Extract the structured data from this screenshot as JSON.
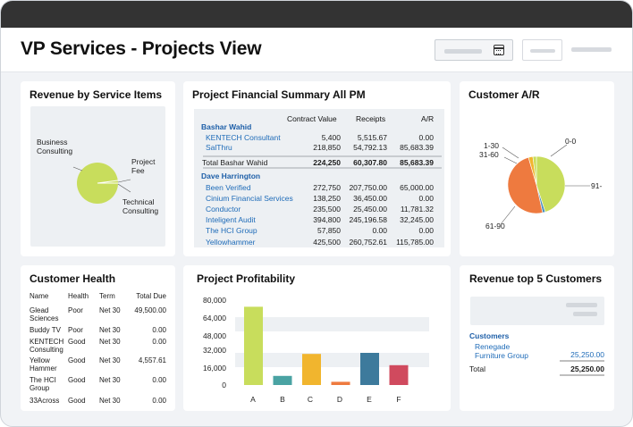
{
  "page": {
    "title": "VP Services - Projects View"
  },
  "revenue_service": {
    "title": "Revenue by  Service Items",
    "labels": [
      "Business\nConsulting",
      "Project\nFee",
      "Technical\nConsulting"
    ],
    "colors": {
      "main": "#c8dd5c",
      "accent": "#ffffff"
    }
  },
  "financial_summary": {
    "title": "Project Financial Summary All PM",
    "headers": {
      "contract": "Contract Value",
      "receipts": "Receipts",
      "ar": "A/R"
    },
    "pm1": {
      "name": "Bashar Wahid",
      "rows": [
        {
          "name": "KENTECH Consultant",
          "contract": "5,400",
          "receipts": "5,515.67",
          "ar": "0.00"
        },
        {
          "name": "SalThru",
          "contract": "218,850",
          "receipts": "54,792.13",
          "ar": "85,683.39"
        }
      ],
      "total": {
        "label": "Total Bashar Wahid",
        "contract": "224,250",
        "receipts": "60,307.80",
        "ar": "85,683.39"
      }
    },
    "pm2": {
      "name": "Dave Harrington",
      "rows": [
        {
          "name": "Been Verified",
          "contract": "272,750",
          "receipts": "207,750.00",
          "ar": "65,000.00"
        },
        {
          "name": "Cinium Financial Services",
          "contract": "138,250",
          "receipts": "36,450.00",
          "ar": "0.00"
        },
        {
          "name": "Conductor",
          "contract": "235,500",
          "receipts": "25,450.00",
          "ar": "11,781.32"
        },
        {
          "name": "Inteligent Audit",
          "contract": "394,800",
          "receipts": "245,196.58",
          "ar": "32,245.00"
        },
        {
          "name": "The HCI Group",
          "contract": "57,850",
          "receipts": "0.00",
          "ar": "0.00"
        },
        {
          "name": "Yellowhammer",
          "contract": "425,500",
          "receipts": "260,752.61",
          "ar": "115,785.00"
        }
      ]
    }
  },
  "customer_ar": {
    "title": "Customer A/R",
    "buckets": [
      {
        "label": "0-0",
        "value": 45,
        "color": "#c8dd5c"
      },
      {
        "label": "91-",
        "value": 1.5,
        "color": "#4a8fc0"
      },
      {
        "label": "61-90",
        "value": 49,
        "color": "#ee7a3f"
      },
      {
        "label": "31-60",
        "value": 2.5,
        "color": "#f1b52e"
      },
      {
        "label": "1-30",
        "value": 2,
        "color": "#c8dd5c"
      }
    ]
  },
  "customer_health": {
    "title": "Customer Health",
    "headers": {
      "name": "Name",
      "health": "Health",
      "term": "Term",
      "due": "Total Due"
    },
    "rows": [
      {
        "name": "Glead\nSciences",
        "health": "Poor",
        "term": "Net 30",
        "due": "49,500.00"
      },
      {
        "name": "Buddy TV",
        "health": "Poor",
        "term": "Net 30",
        "due": "0.00"
      },
      {
        "name": "KENTECH\nConsulting",
        "health": "Good",
        "term": "Net 30",
        "due": "0.00"
      },
      {
        "name": "Yellow\nHammer",
        "health": "Good",
        "term": "Net 30",
        "due": "4,557.61"
      },
      {
        "name": "The HCI\nGroup",
        "health": "Good",
        "term": "Net 30",
        "due": "0.00"
      },
      {
        "name": "33Across",
        "health": "Good",
        "term": "Net 30",
        "due": "0.00"
      }
    ]
  },
  "profitability": {
    "title": "Project Profitability"
  },
  "chart_data": {
    "type": "bar",
    "title": "Project Profitability",
    "categories": [
      "A",
      "B",
      "C",
      "D",
      "E",
      "F"
    ],
    "values": [
      73000,
      8500,
      29000,
      3000,
      30000,
      18500
    ],
    "colors": [
      "#c8dd5c",
      "#4aa3a3",
      "#f1b52e",
      "#ee7a3f",
      "#3d7a9c",
      "#d04a5e"
    ],
    "yticks": [
      "80,000",
      "64,000",
      "48,000",
      "32,000",
      "16,000",
      "0"
    ],
    "ylim": [
      0,
      80000
    ],
    "xlabel": "",
    "ylabel": ""
  },
  "revenue_top5": {
    "title": "Revenue top 5 Customers",
    "section": "Customers",
    "customer": "Renegade\nFurniture Group",
    "amount": "25,250.00",
    "total_label": "Total",
    "total": "25,250.00"
  }
}
